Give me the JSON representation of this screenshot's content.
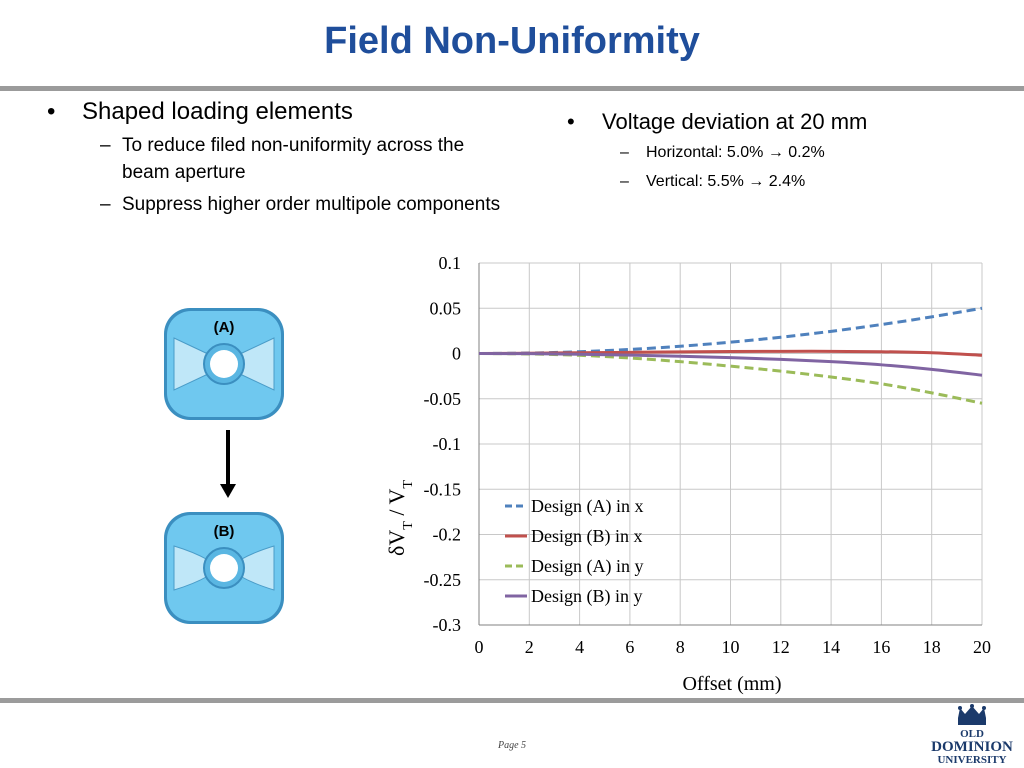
{
  "slide": {
    "title": "Field Non-Uniformity",
    "page_label": "Page 5"
  },
  "left_bullets": {
    "main": "Shaped loading elements",
    "subs": [
      "To reduce filed non-uniformity across the beam aperture",
      "Suppress higher order multipole components"
    ]
  },
  "right_bullets": {
    "main": "Voltage deviation at 20 mm",
    "subs": [
      "Horizontal: 5.0% → 0.2%",
      "Vertical: 5.5% → 2.4%"
    ]
  },
  "figure": {
    "label_a": "(A)",
    "label_b": "(B)",
    "cavity_color": "#6fc8ef"
  },
  "logo": {
    "line1": "OLD",
    "line2": "DOMINION",
    "line3": "UNIVERSITY",
    "color": "#1b3a6b"
  },
  "chart_data": {
    "type": "line",
    "xlabel": "Offset (mm)",
    "ylabel_delta": "δ",
    "ylabel_main": "V",
    "ylabel_sub": "T",
    "ylabel_sep": " / ",
    "xlim": [
      0,
      20
    ],
    "ylim": [
      -0.3,
      0.1
    ],
    "xticks": [
      0,
      2,
      4,
      6,
      8,
      10,
      12,
      14,
      16,
      18,
      20
    ],
    "yticks": [
      0.1,
      0.05,
      0,
      -0.05,
      -0.1,
      -0.15,
      -0.2,
      -0.25,
      -0.3
    ],
    "ytick_labels": [
      "0.1",
      "0.05",
      "0",
      "-0.05",
      "-0.1",
      "-0.15",
      "-0.2",
      "-0.25",
      "-0.3"
    ],
    "grid": true,
    "legend_position": "lower-left inside plot",
    "x": [
      0,
      2,
      4,
      6,
      8,
      10,
      12,
      14,
      16,
      18,
      20
    ],
    "series": [
      {
        "name": "Design (A) in x",
        "color": "#4f81bd",
        "dashed": true,
        "values": [
          0,
          0.0005,
          0.002,
          0.0045,
          0.008,
          0.0125,
          0.018,
          0.0245,
          0.032,
          0.0405,
          0.05
        ]
      },
      {
        "name": "Design (B) in x",
        "color": "#c0504d",
        "dashed": false,
        "values": [
          0,
          0.0003,
          0.0008,
          0.0013,
          0.0018,
          0.0022,
          0.0024,
          0.0024,
          0.002,
          0.0008,
          -0.002
        ]
      },
      {
        "name": "Design (A) in y",
        "color": "#9bbb59",
        "dashed": true,
        "values": [
          0,
          -0.0005,
          -0.002,
          -0.005,
          -0.009,
          -0.014,
          -0.0195,
          -0.026,
          -0.0335,
          -0.0435,
          -0.055
        ]
      },
      {
        "name": "Design (B) in y",
        "color": "#8064a2",
        "dashed": false,
        "values": [
          0,
          -0.0002,
          -0.0008,
          -0.0018,
          -0.003,
          -0.0045,
          -0.0065,
          -0.009,
          -0.0125,
          -0.0175,
          -0.024
        ]
      }
    ]
  }
}
